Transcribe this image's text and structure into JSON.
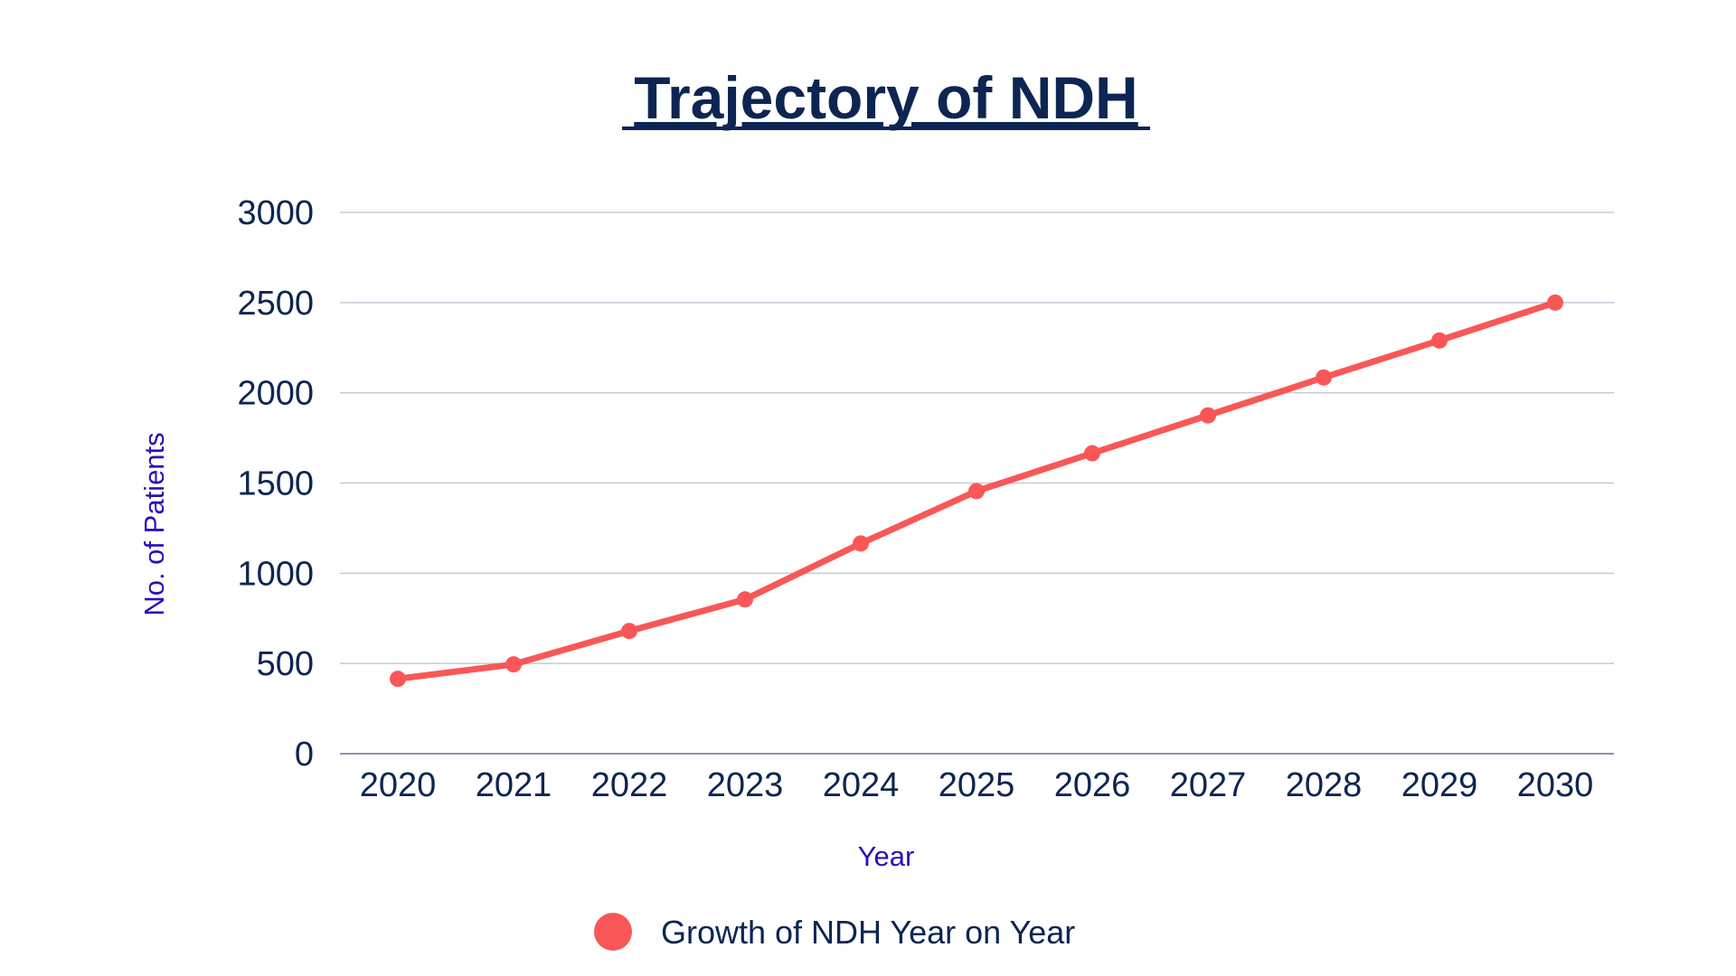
{
  "chart_data": {
    "type": "line",
    "title": "Trajectory of NDH",
    "xlabel": "Year",
    "ylabel": "No. of Patients",
    "categories": [
      "2020",
      "2021",
      "2022",
      "2023",
      "2024",
      "2025",
      "2026",
      "2027",
      "2028",
      "2029",
      "2030"
    ],
    "series": [
      {
        "name": "Growth of NDH Year on Year",
        "values": [
          415,
          495,
          680,
          855,
          1165,
          1455,
          1665,
          1875,
          2085,
          2290,
          2500
        ]
      }
    ],
    "ylim": [
      0,
      3000
    ],
    "yticks": [
      "0",
      "500",
      "1000",
      "1500",
      "2000",
      "2500",
      "3000"
    ],
    "grid": true,
    "legend_position": "bottom-center"
  },
  "colors": {
    "series": "#f95757",
    "title": "#0d2552",
    "tick_text": "#0d2552",
    "axis_title": "#2b10b8",
    "grid": "#c5cad8",
    "axis": "#8a93ad"
  }
}
